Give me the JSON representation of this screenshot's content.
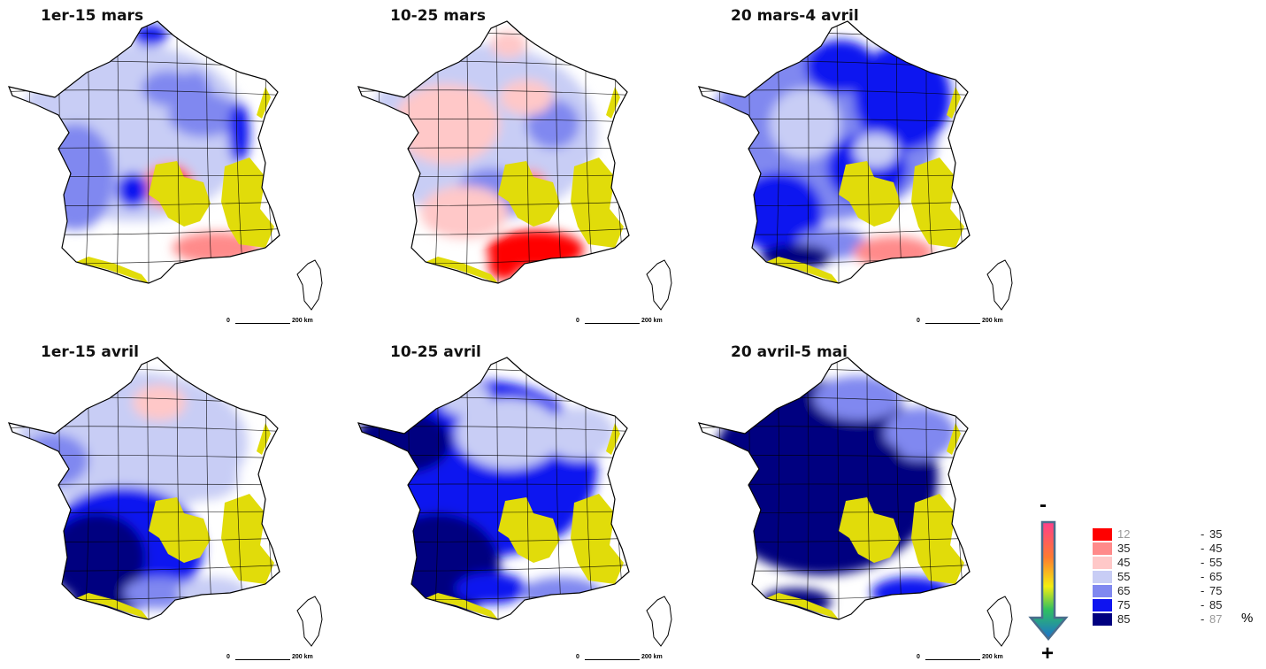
{
  "panels": [
    {
      "title": "1er-15 mars"
    },
    {
      "title": "10-25 mars"
    },
    {
      "title": "20 mars-4 avril"
    },
    {
      "title": "1er-15 avril"
    },
    {
      "title": "10-25 avril"
    },
    {
      "title": "20 avril-5 mai"
    }
  ],
  "scale": {
    "zero": "0",
    "length_label": "200 km"
  },
  "legend": {
    "minus": "-",
    "plus": "+",
    "unit": "%",
    "classes": [
      {
        "from": "12",
        "to": "35",
        "color": "#ff0000"
      },
      {
        "from": "35",
        "to": "45",
        "color": "#ff8a8a"
      },
      {
        "from": "45",
        "to": "55",
        "color": "#ffc8c8"
      },
      {
        "from": "55",
        "to": "65",
        "color": "#c8cdf5"
      },
      {
        "from": "65",
        "to": "75",
        "color": "#8088f0"
      },
      {
        "from": "75",
        "to": "85",
        "color": "#0f14f0"
      },
      {
        "from": "85",
        "to": "87",
        "color": "#000080"
      }
    ]
  },
  "colors": {
    "no_data": "#e1dc0a",
    "borders": "#000000"
  }
}
